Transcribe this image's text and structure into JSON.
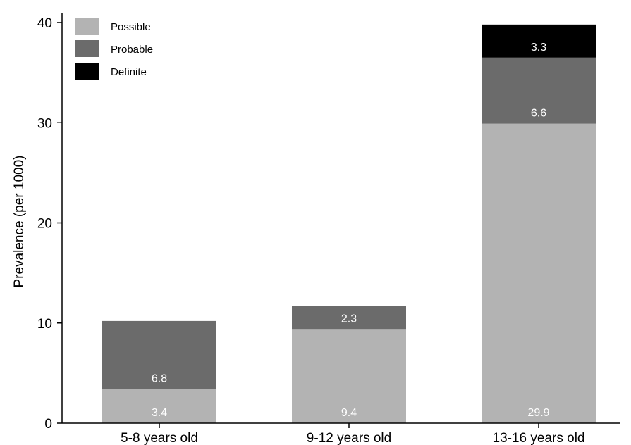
{
  "chart_data": {
    "type": "bar",
    "stacked": true,
    "title": "",
    "xlabel": "",
    "ylabel": "Prevalence (per 1000)",
    "ylim": [
      0,
      40
    ],
    "yticks": [
      0,
      10,
      20,
      30,
      40
    ],
    "grid": false,
    "legend_position": "top-left",
    "categories": [
      "5-8 years old",
      "9-12 years old",
      "13-16 years old"
    ],
    "series": [
      {
        "name": "Possible",
        "color": "#b3b3b3",
        "values": [
          3.4,
          9.4,
          29.9
        ],
        "labels": [
          "3.4",
          "9.4",
          "29.9"
        ]
      },
      {
        "name": "Probable",
        "color": "#6b6b6b",
        "values": [
          6.8,
          2.3,
          6.6
        ],
        "labels": [
          "6.8",
          "2.3",
          "6.6"
        ]
      },
      {
        "name": "Definite",
        "color": "#000000",
        "values": [
          0,
          0,
          3.3
        ],
        "labels": [
          "",
          "",
          "3.3"
        ]
      }
    ]
  }
}
